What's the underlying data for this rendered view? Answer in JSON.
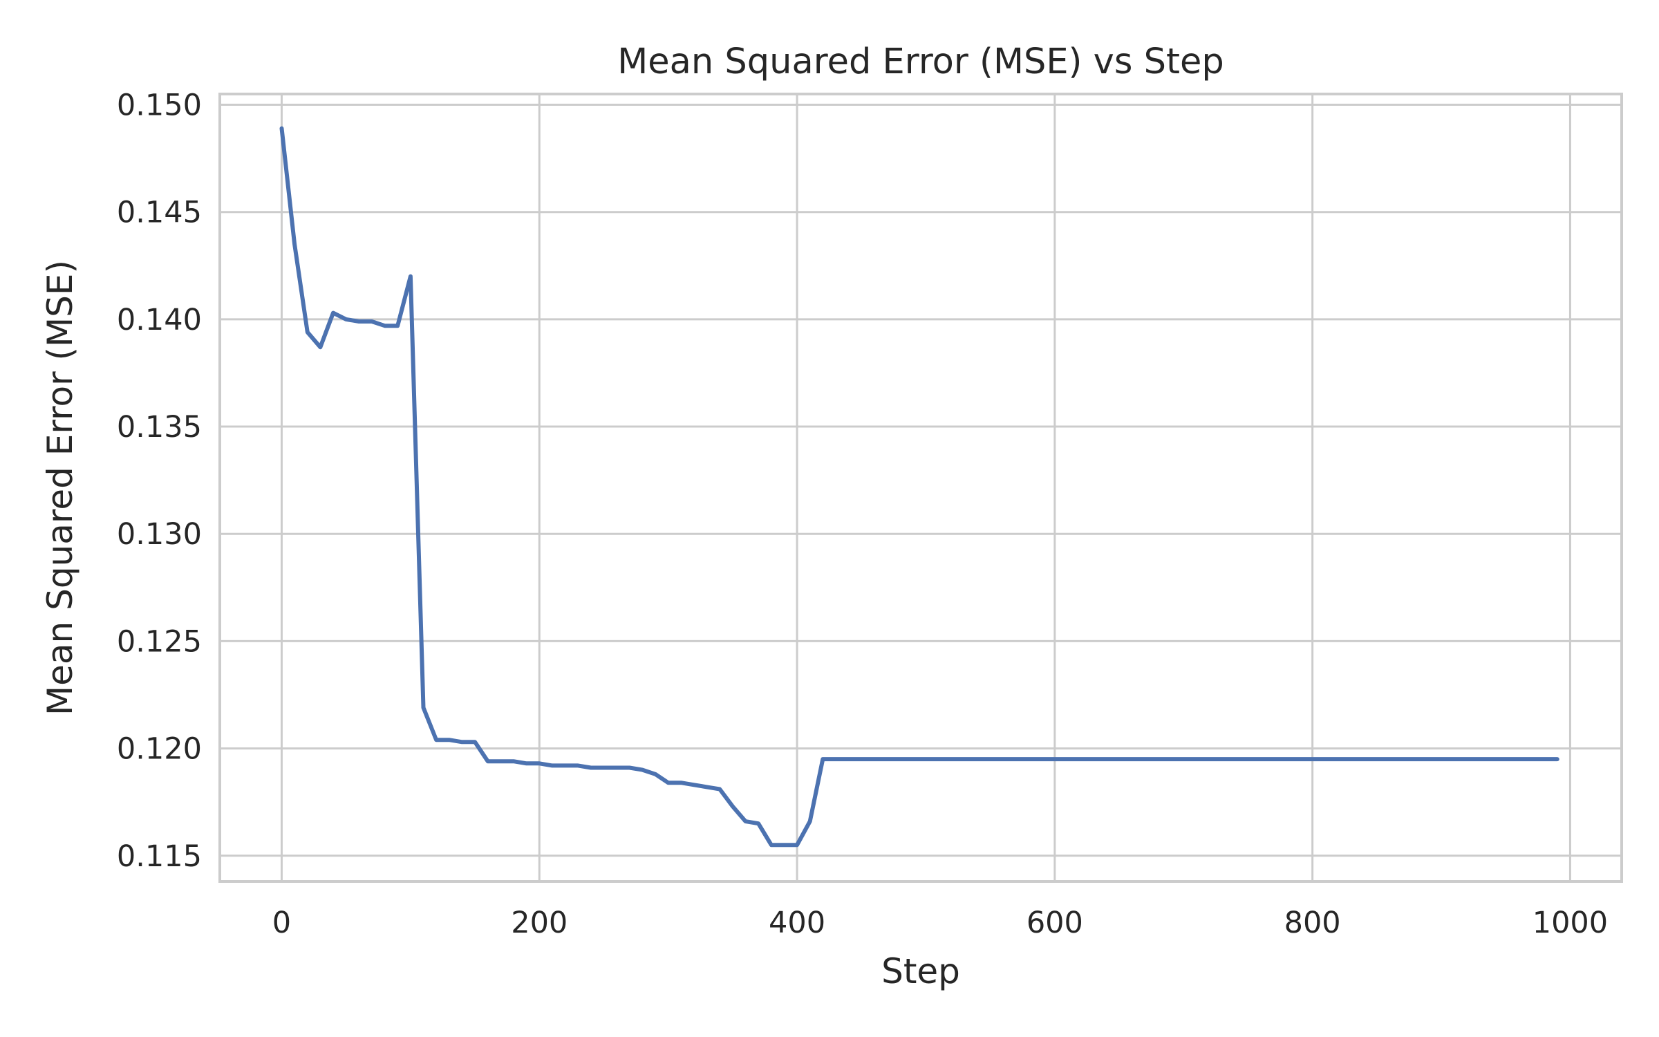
{
  "chart_data": {
    "type": "line",
    "title": "Mean Squared Error (MSE) vs Step",
    "xlabel": "Step",
    "ylabel": "Mean Squared Error (MSE)",
    "xlim": [
      -48,
      1040
    ],
    "ylim": [
      0.1138,
      0.1505
    ],
    "xticks": [
      0,
      200,
      400,
      600,
      800,
      1000
    ],
    "xtick_labels": [
      "0",
      "200",
      "400",
      "600",
      "800",
      "1000"
    ],
    "yticks": [
      0.115,
      0.12,
      0.125,
      0.13,
      0.135,
      0.14,
      0.145,
      0.15
    ],
    "ytick_labels": [
      "0.115",
      "0.120",
      "0.125",
      "0.130",
      "0.135",
      "0.140",
      "0.145",
      "0.150"
    ],
    "grid": true,
    "legend": "none",
    "line_color": "#4c72b0",
    "series": [
      {
        "x": [
          0,
          10,
          20,
          30,
          40,
          50,
          60,
          70,
          80,
          90,
          100,
          110,
          120,
          130,
          140,
          150,
          160,
          170,
          180,
          190,
          200,
          210,
          220,
          230,
          240,
          250,
          260,
          270,
          280,
          290,
          300,
          310,
          320,
          330,
          340,
          350,
          360,
          370,
          380,
          390,
          400,
          410,
          420,
          990
        ],
        "y": [
          0.1489,
          0.1435,
          0.1394,
          0.1387,
          0.1403,
          0.14,
          0.1399,
          0.1399,
          0.1397,
          0.1397,
          0.142,
          0.1219,
          0.1204,
          0.1204,
          0.1203,
          0.1203,
          0.1194,
          0.1194,
          0.1194,
          0.1193,
          0.1193,
          0.1192,
          0.1192,
          0.1192,
          0.1191,
          0.1191,
          0.1191,
          0.1191,
          0.119,
          0.1188,
          0.1184,
          0.1184,
          0.1183,
          0.1182,
          0.1181,
          0.1173,
          0.1166,
          0.1165,
          0.1155,
          0.1155,
          0.1155,
          0.1166,
          0.1195,
          0.1195
        ]
      }
    ]
  }
}
